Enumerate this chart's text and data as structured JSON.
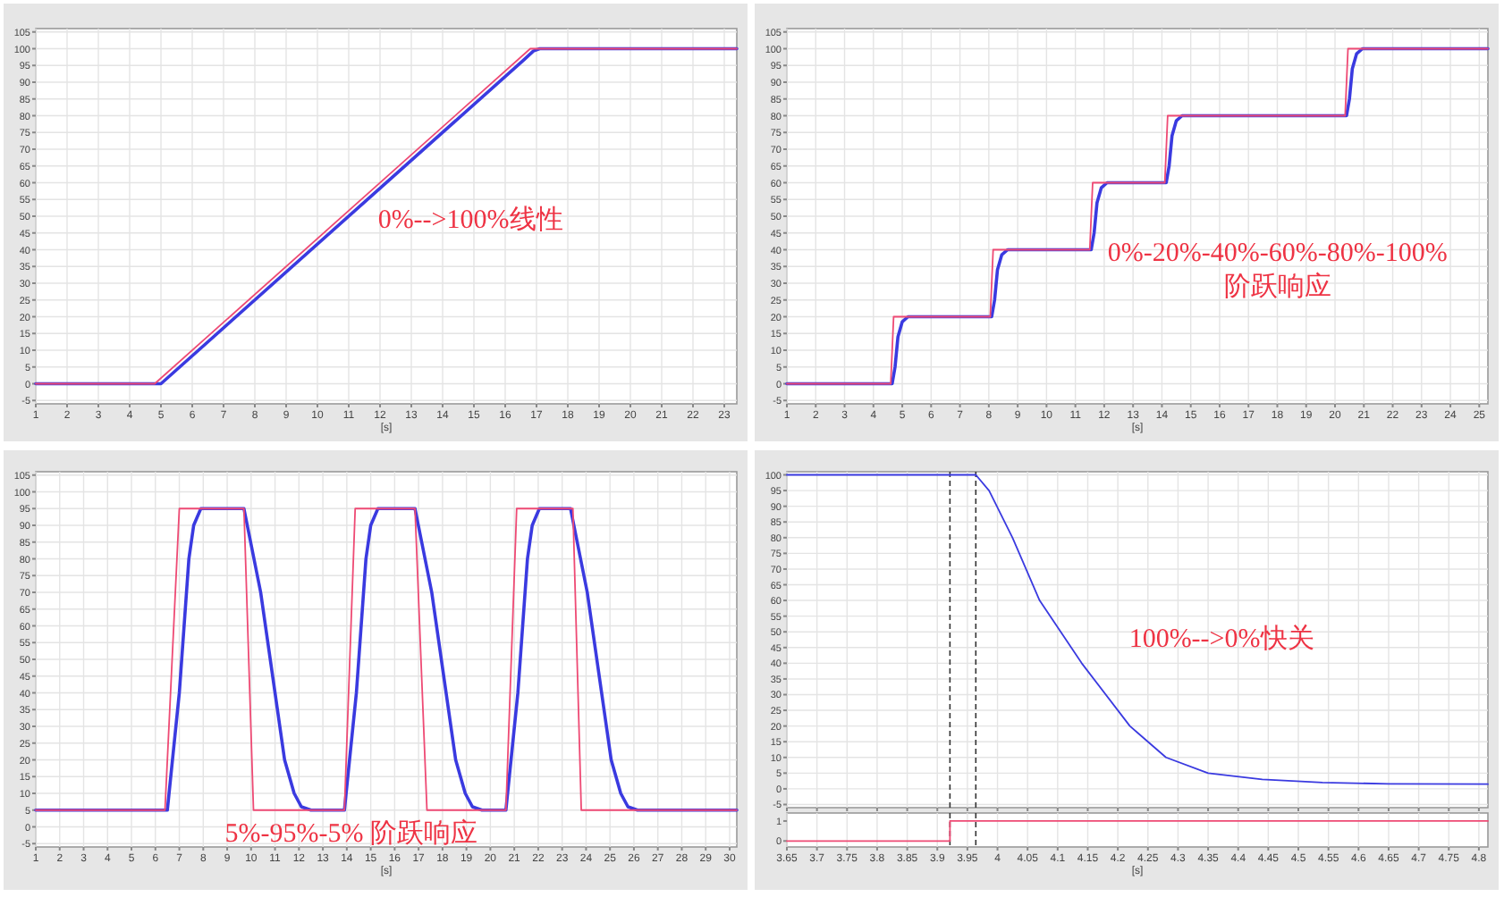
{
  "chart_data": [
    {
      "type": "line",
      "xlabel": "[s]",
      "xlim": [
        1,
        23.4
      ],
      "xticks": [
        1,
        2,
        3,
        4,
        5,
        6,
        7,
        8,
        9,
        10,
        11,
        12,
        13,
        14,
        15,
        16,
        17,
        18,
        19,
        20,
        21,
        22,
        23
      ],
      "ylim": [
        -6,
        106
      ],
      "yticks": [
        -5,
        0,
        5,
        10,
        15,
        20,
        25,
        30,
        35,
        40,
        45,
        50,
        55,
        60,
        65,
        70,
        75,
        80,
        85,
        90,
        95,
        100,
        105
      ],
      "grid": true,
      "annotations": [
        "0%-->100%线性"
      ],
      "series": [
        {
          "color": "#ee4a74",
          "x": [
            1,
            4.8,
            16.8,
            23.4
          ],
          "values": [
            0,
            0,
            100,
            100
          ]
        },
        {
          "color": "#3a3ae0",
          "x": [
            1,
            5.0,
            16.6,
            16.9,
            17.1,
            23.4
          ],
          "values": [
            0,
            0,
            96.7,
            99.3,
            100,
            100
          ]
        }
      ]
    },
    {
      "type": "line",
      "xlabel": "[s]",
      "xlim": [
        1,
        25.3
      ],
      "xticks": [
        1,
        2,
        3,
        4,
        5,
        6,
        7,
        8,
        9,
        10,
        11,
        12,
        13,
        14,
        15,
        16,
        17,
        18,
        19,
        20,
        21,
        22,
        23,
        24,
        25
      ],
      "ylim": [
        -6,
        106
      ],
      "yticks": [
        -5,
        0,
        5,
        10,
        15,
        20,
        25,
        30,
        35,
        40,
        45,
        50,
        55,
        60,
        65,
        70,
        75,
        80,
        85,
        90,
        95,
        100,
        105
      ],
      "grid": true,
      "annotations": [
        "0%-20%-40%-60%-80%-100%\n阶跃响应"
      ],
      "series": [
        {
          "color": "#ee4a74",
          "x": [
            1,
            4.6,
            4.7,
            8.05,
            8.15,
            11.5,
            11.6,
            14.1,
            14.2,
            20.35,
            20.45,
            25.3
          ],
          "values": [
            0,
            0,
            20,
            20,
            40,
            40,
            60,
            60,
            80,
            80,
            100,
            100
          ]
        },
        {
          "color": "#3a3ae0",
          "x": [
            1,
            4.65,
            4.75,
            4.85,
            5.0,
            5.2,
            8.1,
            8.2,
            8.3,
            8.45,
            8.65,
            11.55,
            11.65,
            11.75,
            11.9,
            12.1,
            14.15,
            14.25,
            14.35,
            14.5,
            14.7,
            20.4,
            20.5,
            20.6,
            20.75,
            20.95,
            25.3
          ],
          "values": [
            0,
            0,
            5,
            14,
            18.5,
            20,
            20,
            25,
            34,
            38.5,
            40,
            40,
            45,
            54,
            58.5,
            60,
            60,
            65,
            74,
            78.5,
            80,
            80,
            85,
            94,
            98.5,
            100,
            100
          ]
        }
      ]
    },
    {
      "type": "line",
      "xlabel": "[s]",
      "xlim": [
        1,
        30.3
      ],
      "xticks": [
        1,
        2,
        3,
        4,
        5,
        6,
        7,
        8,
        9,
        10,
        11,
        12,
        13,
        14,
        15,
        16,
        17,
        18,
        19,
        20,
        21,
        22,
        23,
        24,
        25,
        26,
        27,
        28,
        29,
        30
      ],
      "ylim": [
        -6,
        106
      ],
      "yticks": [
        -5,
        0,
        5,
        10,
        15,
        20,
        25,
        30,
        35,
        40,
        45,
        50,
        55,
        60,
        65,
        70,
        75,
        80,
        85,
        90,
        95,
        100,
        105
      ],
      "grid": true,
      "annotations": [
        "5%-95%-5%   阶跃响应"
      ],
      "series": [
        {
          "color": "#ee4a74",
          "x": [
            1,
            6.4,
            7.0,
            9.7,
            10.1,
            13.9,
            14.35,
            16.85,
            17.35,
            20.65,
            21.1,
            23.45,
            23.8,
            30.3
          ],
          "values": [
            5,
            5,
            95,
            95,
            5,
            5,
            95,
            95,
            5,
            5,
            95,
            95,
            5,
            5
          ]
        },
        {
          "color": "#3a3ae0",
          "x": [
            1,
            6.5,
            7.0,
            7.4,
            7.6,
            7.9,
            9.7,
            10.4,
            11.0,
            11.4,
            11.8,
            12.1,
            12.5,
            13.9,
            14.4,
            14.8,
            15.0,
            15.3,
            16.85,
            17.55,
            18.15,
            18.55,
            18.95,
            19.25,
            19.65,
            20.65,
            21.15,
            21.55,
            21.75,
            22.05,
            23.35,
            24.05,
            24.65,
            25.05,
            25.45,
            25.75,
            26.15,
            30.3
          ],
          "values": [
            5,
            5,
            40,
            80,
            90,
            95,
            95,
            70,
            40,
            20,
            10,
            6,
            5,
            5,
            40,
            80,
            90,
            95,
            95,
            70,
            40,
            20,
            10,
            6,
            5,
            5,
            40,
            80,
            90,
            95,
            95,
            70,
            40,
            20,
            10,
            6,
            5,
            5
          ]
        }
      ]
    },
    {
      "type": "line",
      "xlim": [
        3.65,
        4.815
      ],
      "xticks": [
        3.65,
        3.7,
        3.75,
        3.8,
        3.85,
        3.9,
        3.95,
        4,
        4.05,
        4.1,
        4.15,
        4.2,
        4.25,
        4.3,
        4.35,
        4.4,
        4.45,
        4.5,
        4.55,
        4.6,
        4.65,
        4.7,
        4.75,
        4.8
      ],
      "ylim": [
        -6,
        101
      ],
      "yticks": [
        -5,
        0,
        5,
        10,
        15,
        20,
        25,
        30,
        35,
        40,
        45,
        50,
        55,
        60,
        65,
        70,
        75,
        80,
        85,
        90,
        95,
        100
      ],
      "grid": true,
      "tick_labels": "y",
      "annotations": [
        "100%-->0%快关"
      ],
      "ref_lines": [
        {
          "axis": "x",
          "value": 3.921,
          "line_style": "dashed",
          "color": "#333333"
        },
        {
          "axis": "x",
          "value": 3.964,
          "line_style": "dashed",
          "color": "#333333"
        }
      ],
      "series": [
        {
          "color": "#3a3ae0",
          "x": [
            3.65,
            3.964,
            3.986,
            4.025,
            4.07,
            4.14,
            4.22,
            4.28,
            4.35,
            4.44,
            4.54,
            4.65,
            4.815
          ],
          "values": [
            100,
            100,
            95,
            80,
            60,
            40,
            20,
            10,
            5,
            3,
            2,
            1.6,
            1.5
          ]
        }
      ]
    },
    {
      "type": "line",
      "xlabel": "[s]",
      "xlim": [
        3.65,
        4.815
      ],
      "xticks": [
        3.65,
        3.7,
        3.75,
        3.8,
        3.85,
        3.9,
        3.95,
        4,
        4.05,
        4.1,
        4.15,
        4.2,
        4.25,
        4.3,
        4.35,
        4.4,
        4.45,
        4.5,
        4.55,
        4.6,
        4.65,
        4.7,
        4.75,
        4.8
      ],
      "ylim": [
        -0.3,
        1.4
      ],
      "yticks": [
        0,
        1
      ],
      "grid": "x",
      "ref_lines": [
        {
          "axis": "x",
          "value": 3.921,
          "line_style": "dashed",
          "color": "#333333"
        },
        {
          "axis": "x",
          "value": 3.964,
          "line_style": "dashed",
          "color": "#333333"
        }
      ],
      "series": [
        {
          "color": "#ee4a74",
          "x": [
            3.65,
            3.921,
            3.921,
            4.815
          ],
          "values": [
            0,
            0,
            1,
            1
          ]
        }
      ]
    }
  ]
}
